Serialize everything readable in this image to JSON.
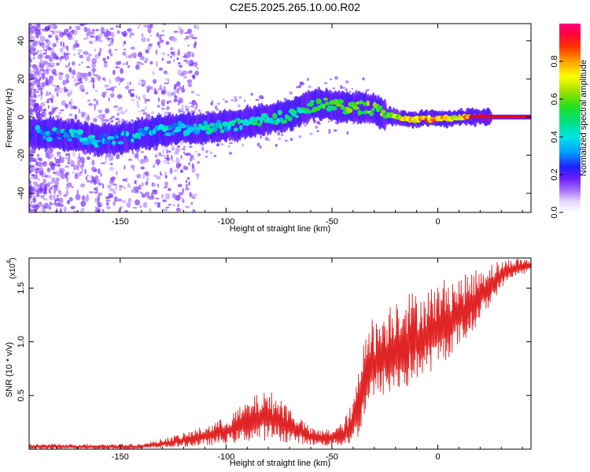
{
  "title": "C2E5.2025.265.10.00.R02",
  "colors": {
    "signal": "#ff0000",
    "trace": "#e02424",
    "axis": "#000000"
  },
  "chart_data": [
    {
      "type": "heatmap",
      "xlabel": "Height of straight line (km)",
      "ylabel": "Frequency (Hz)",
      "xlim": [
        -193,
        44
      ],
      "ylim": [
        -50,
        49
      ],
      "xticks": [
        -150,
        -100,
        -50,
        0
      ],
      "xtick_labels": [
        "-150",
        "-100",
        "-50",
        "0"
      ],
      "yticks": [
        -40,
        -20,
        0,
        20,
        40
      ],
      "ytick_labels": [
        "-40",
        "-20",
        "0",
        "20",
        "40"
      ],
      "colorbar": {
        "label": "Normalized spectral amplitude",
        "range": [
          0,
          1
        ],
        "ticks": [
          0.0,
          0.2,
          0.4,
          0.6,
          0.8
        ],
        "tick_labels": [
          "0.0",
          "0.2",
          "0.4",
          "0.6",
          "0.8"
        ]
      },
      "ridge": {
        "x": [
          -193,
          -180,
          -170,
          -160,
          -150,
          -140,
          -130,
          -120,
          -110,
          -100,
          -90,
          -80,
          -70,
          -60,
          -55,
          -50,
          -45,
          -40,
          -35,
          -30,
          -25,
          -20,
          -15,
          -10,
          -5,
          0,
          5,
          10,
          15,
          20,
          30,
          44
        ],
        "frequency": [
          -8,
          -9,
          -10,
          -12,
          -11,
          -9,
          -7,
          -6,
          -6,
          -5,
          -3,
          -1,
          1,
          6,
          7,
          6,
          5,
          5,
          5,
          4,
          1,
          0,
          -1,
          -1,
          -1,
          -1,
          -1,
          0,
          0,
          0,
          0,
          0
        ],
        "amplitude": [
          0.3,
          0.35,
          0.35,
          0.35,
          0.35,
          0.35,
          0.4,
          0.35,
          0.4,
          0.4,
          0.45,
          0.45,
          0.45,
          0.5,
          0.55,
          0.55,
          0.6,
          0.6,
          0.6,
          0.6,
          0.6,
          0.65,
          0.75,
          0.75,
          0.8,
          0.8,
          0.75,
          0.7,
          0.8,
          0.95,
          0.95,
          0.95
        ]
      }
    },
    {
      "type": "line",
      "xlabel": "Height of straight line (km)",
      "ylabel": "SNR (10 * v/v)",
      "y_multiplier": "(x10",
      "y_multiplier_exp": "4",
      "xlim": [
        -193,
        44
      ],
      "ylim": [
        0,
        1.78
      ],
      "xticks": [
        -150,
        -100,
        -50,
        0
      ],
      "xtick_labels": [
        "-150",
        "-100",
        "-50",
        "0"
      ],
      "yticks": [
        0.5,
        1.0,
        1.5
      ],
      "ytick_labels": [
        "0.5",
        "1.0",
        "1.5"
      ],
      "envelope": {
        "x": [
          -193,
          -140,
          -130,
          -120,
          -110,
          -100,
          -90,
          -85,
          -80,
          -75,
          -70,
          -65,
          -60,
          -55,
          -50,
          -45,
          -40,
          -36,
          -34,
          -30,
          -25,
          -20,
          -15,
          -10,
          -5,
          0,
          5,
          10,
          15,
          20,
          25,
          30,
          35,
          44
        ],
        "min": [
          0.0,
          0.0,
          0.01,
          0.02,
          0.03,
          0.05,
          0.07,
          0.08,
          0.08,
          0.07,
          0.06,
          0.05,
          0.04,
          0.03,
          0.03,
          0.03,
          0.05,
          0.15,
          0.35,
          0.45,
          0.5,
          0.5,
          0.55,
          0.65,
          0.7,
          0.75,
          0.85,
          0.95,
          1.05,
          1.2,
          1.35,
          1.5,
          1.6,
          1.65
        ],
        "max": [
          0.05,
          0.05,
          0.1,
          0.15,
          0.22,
          0.3,
          0.45,
          0.52,
          0.55,
          0.5,
          0.4,
          0.3,
          0.2,
          0.18,
          0.2,
          0.25,
          0.45,
          0.9,
          1.3,
          1.2,
          1.3,
          1.45,
          1.5,
          1.45,
          1.5,
          1.55,
          1.62,
          1.6,
          1.65,
          1.7,
          1.74,
          1.76,
          1.78,
          1.78
        ]
      }
    }
  ]
}
